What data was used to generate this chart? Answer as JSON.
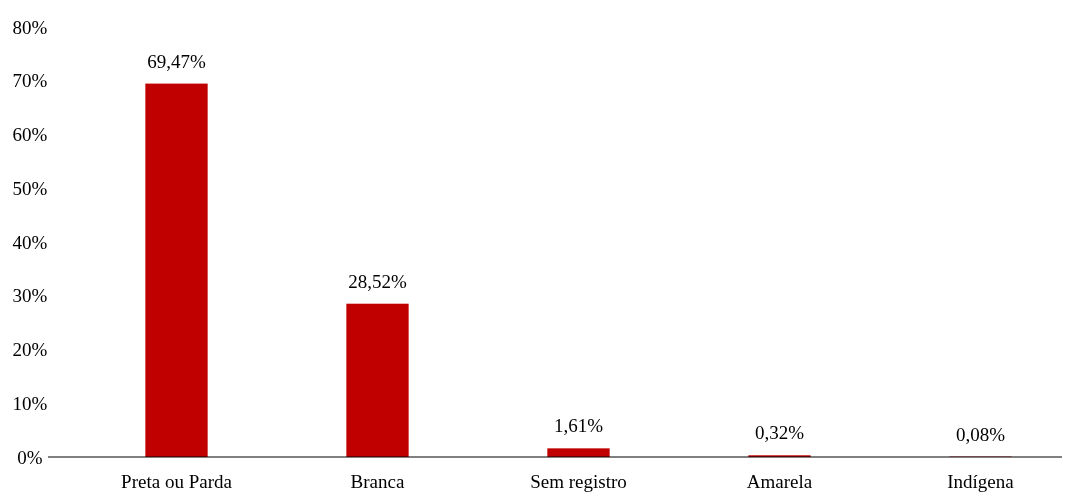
{
  "chart_data": {
    "type": "bar",
    "categories": [
      "Preta ou Parda",
      "Branca",
      "Sem registro",
      "Amarela",
      "Indígena"
    ],
    "values": [
      69.47,
      28.52,
      1.61,
      0.32,
      0.08
    ],
    "value_labels": [
      "69,47%",
      "28,52%",
      "1,61%",
      "0,32%",
      "0,08%"
    ],
    "color": "#c00000",
    "ylim": [
      0,
      80
    ],
    "yticks": [
      {
        "value": 0,
        "label": "0%"
      },
      {
        "value": 10,
        "label": "10%"
      },
      {
        "value": 20,
        "label": "20%"
      },
      {
        "value": 30,
        "label": "30%"
      },
      {
        "value": 40,
        "label": "40%"
      },
      {
        "value": 50,
        "label": "50%"
      },
      {
        "value": 60,
        "label": "60%"
      },
      {
        "value": 70,
        "label": "70%"
      },
      {
        "value": 80,
        "label": "80%"
      }
    ],
    "grid": false
  }
}
